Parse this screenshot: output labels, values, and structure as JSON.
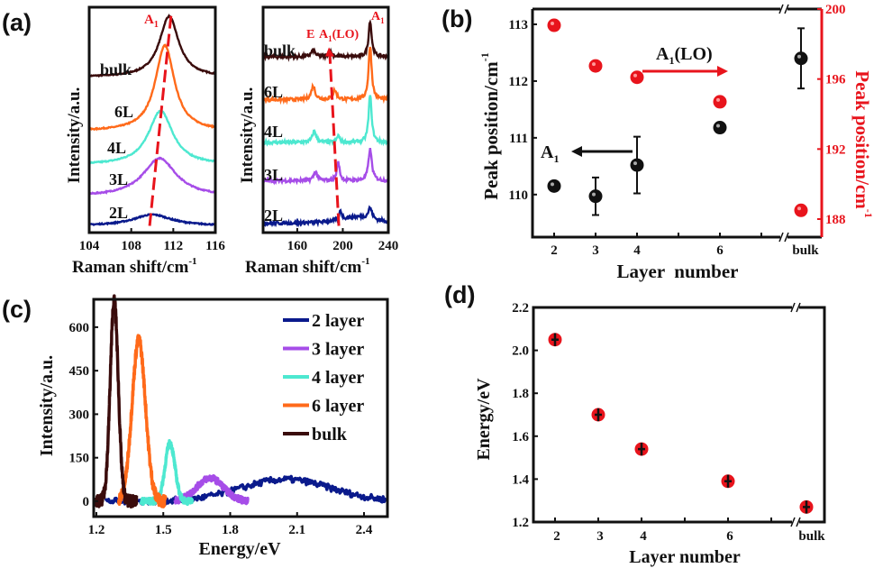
{
  "panels": {
    "a": "(a)",
    "b": "(b)",
    "c": "(c)",
    "d": "(d)"
  },
  "chart_data": [
    {
      "id": "a-left",
      "type": "line",
      "xlabel": "Raman shift/cm",
      "xlabel_sup": "-1",
      "ylabel": "Intensity/a.u.",
      "xlim": [
        104,
        116
      ],
      "ylim": [
        0,
        100
      ],
      "xticks": [
        104,
        108,
        112,
        116
      ],
      "annotation": {
        "text": "A",
        "sub": "1",
        "color": "#e8141c"
      },
      "trend": {
        "x": [
          109.75,
          111.8
        ],
        "y": [
          3,
          97
        ],
        "style": "dashed",
        "color": "#e8141c"
      },
      "series": [
        {
          "name": "bulk",
          "color": "#3a0c0c",
          "offset": 69,
          "peaks": [
            [
              111.6,
              27,
              1.1
            ]
          ]
        },
        {
          "name": "6L",
          "color": "#ff6a1a",
          "offset": 45,
          "peaks": [
            [
              111.2,
              38,
              1.1
            ]
          ]
        },
        {
          "name": "4L",
          "color": "#4de8d0",
          "offset": 30,
          "peaks": [
            [
              110.8,
              24,
              1.4
            ]
          ]
        },
        {
          "name": "3L",
          "color": "#a64de8",
          "offset": 16,
          "peaks": [
            [
              110.7,
              17,
              1.9
            ]
          ]
        },
        {
          "name": "2L",
          "color": "#0a1a8c",
          "offset": 3,
          "peaks": [
            [
              110.0,
              5,
              2.2
            ]
          ]
        }
      ]
    },
    {
      "id": "a-right",
      "type": "line",
      "xlabel": "Raman shift/cm",
      "xlabel_sup": "-1",
      "ylabel": "Intensity/a.u.",
      "xlim": [
        130,
        240
      ],
      "ylim": [
        0,
        100
      ],
      "xticks": [
        160,
        200,
        240
      ],
      "annotations": [
        {
          "text": "E",
          "sub": "",
          "rest": ""
        },
        {
          "text": "A",
          "sub": "1",
          "rest": "(LO)"
        },
        {
          "text": "A",
          "sub": "1",
          "rest": ""
        }
      ],
      "trend": {
        "x": [
          196.5,
          188.6
        ],
        "y": [
          3,
          79
        ],
        "style": "dashed-arrow",
        "color": "#e8141c"
      },
      "series": [
        {
          "name": "bulk",
          "color": "#3a0c0c",
          "offset": 78,
          "peaks": [
            [
              224,
              16,
              1.6
            ],
            [
              174,
              3,
              2
            ],
            [
              189,
              2,
              2
            ]
          ]
        },
        {
          "name": "6L",
          "color": "#ff6a1a",
          "offset": 59,
          "peaks": [
            [
              224,
              24,
              1.6
            ],
            [
              174,
              6,
              2
            ],
            [
              193,
              4,
              2
            ]
          ]
        },
        {
          "name": "4L",
          "color": "#4de8d0",
          "offset": 40,
          "peaks": [
            [
              224,
              21,
              1.6
            ],
            [
              175,
              5,
              2
            ],
            [
              196,
              3,
              1.5
            ]
          ]
        },
        {
          "name": "3L",
          "color": "#a64de8",
          "offset": 23,
          "peaks": [
            [
              224,
              14,
              1.8
            ],
            [
              176,
              4,
              2
            ],
            [
              196,
              8,
              1.5
            ]
          ]
        },
        {
          "name": "2L",
          "color": "#0a1a8c",
          "offset": 4,
          "peaks": [
            [
              224,
              5,
              2
            ],
            [
              198,
              4,
              1.2
            ],
            [
              212,
              3,
              18
            ]
          ]
        }
      ]
    },
    {
      "id": "b",
      "type": "scatter",
      "xlabel": "Layer  number",
      "ylabel": "Peak position/cm",
      "ylabel_sup": "-1",
      "y2label": "Peak position/cm",
      "y2label_sup": "-1",
      "categories": [
        "2",
        "3",
        "4",
        "6",
        "bulk"
      ],
      "ylim": [
        109.25,
        113.27
      ],
      "yticks": [
        110,
        111,
        112,
        113
      ],
      "y2lim": [
        186.97,
        200
      ],
      "y2ticks": [
        188,
        192,
        196,
        200
      ],
      "series": [
        {
          "name": "A1",
          "axis": "left",
          "color": "#111111",
          "values": [
            110.15,
            109.97,
            110.52,
            111.18,
            112.4
          ],
          "errors": [
            0,
            0.33,
            0.5,
            0,
            0.53
          ]
        },
        {
          "name": "A1(LO)",
          "axis": "right",
          "color": "#e8141c",
          "values": [
            199.07,
            196.75,
            196.1,
            194.7,
            188.5
          ]
        }
      ],
      "annotations": [
        {
          "text": "A",
          "sub": "1",
          "rest": "(LO)",
          "arrow": "right",
          "color": "#e8141c"
        },
        {
          "text": "A",
          "sub": "1",
          "rest": "",
          "arrow": "left",
          "color": "#111111"
        }
      ]
    },
    {
      "id": "c",
      "type": "line",
      "xlabel": "Energy/eV",
      "ylabel": "Intensity/a.u.",
      "xlim": [
        1.188,
        2.505
      ],
      "ylim": [
        -53,
        696
      ],
      "xticks": [
        "1.2",
        "1.5",
        "1.8",
        "2.1",
        "2.4"
      ],
      "yticks": [
        "0",
        "150",
        "300",
        "450",
        "600"
      ],
      "legend": "top-right",
      "series": [
        {
          "name": "2 layer",
          "color": "#0a1a8c",
          "peak": 2.05,
          "height": 75,
          "sigma": 0.2,
          "range": [
            1.24,
            2.5
          ]
        },
        {
          "name": "3 layer",
          "color": "#a64de8",
          "peak": 1.71,
          "height": 80,
          "sigma": 0.06,
          "range": [
            1.55,
            1.88
          ]
        },
        {
          "name": "4 layer",
          "color": "#4de8d0",
          "peak": 1.53,
          "height": 200,
          "sigma": 0.022,
          "range": [
            1.4,
            1.63
          ]
        },
        {
          "name": "6 layer",
          "color": "#ff6a1a",
          "peak": 1.39,
          "height": 555,
          "sigma": 0.03,
          "range": [
            1.3,
            1.51
          ]
        },
        {
          "name": "bulk",
          "color": "#3a0c0c",
          "peak": 1.28,
          "height": 690,
          "sigma": 0.018,
          "range": [
            1.2,
            1.38
          ]
        }
      ]
    },
    {
      "id": "d",
      "type": "scatter",
      "xlabel": "Layer number",
      "ylabel": "Energy/eV",
      "categories": [
        "2",
        "3",
        "4",
        "6",
        "bulk"
      ],
      "ylim": [
        1.2,
        2.2
      ],
      "yticks": [
        "1.2",
        "1.4",
        "1.6",
        "1.8",
        "2.0",
        "2.2"
      ],
      "values": [
        2.05,
        1.7,
        1.54,
        1.39,
        1.27
      ],
      "errors": [
        0.03,
        0.03,
        0.03,
        0.03,
        0.03
      ],
      "color": "#e8141c"
    }
  ]
}
